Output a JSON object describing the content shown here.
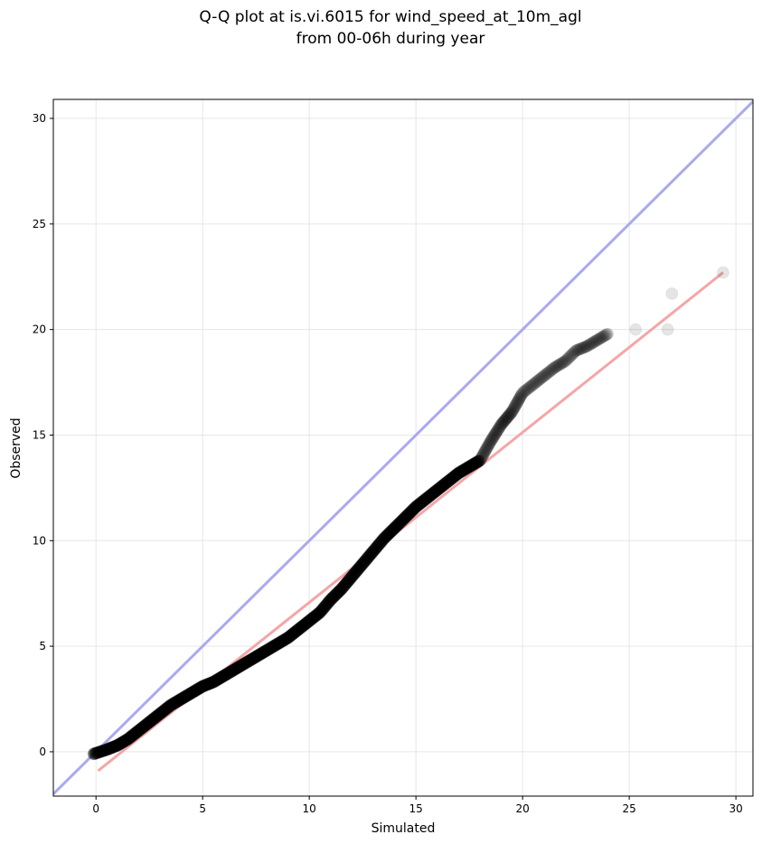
{
  "chart_data": {
    "type": "scatter",
    "title_line1": "Q-Q plot at is.vi.6015 for wind_speed_at_10m_agl",
    "title_line2": "from 00-06h during year",
    "xlabel": "Simulated",
    "ylabel": "Observed",
    "xlim": [
      -2.0,
      30.8
    ],
    "ylim": [
      -2.1,
      30.9
    ],
    "xticks": [
      0,
      5,
      10,
      15,
      20,
      25,
      30
    ],
    "yticks": [
      0,
      5,
      10,
      15,
      20,
      25,
      30
    ],
    "xtick_labels": [
      "0",
      "5",
      "10",
      "15",
      "20",
      "25",
      "30"
    ],
    "ytick_labels": [
      "0",
      "5",
      "10",
      "15",
      "20",
      "25",
      "30"
    ],
    "grid": true,
    "colors": {
      "identity_line": "#aaaaf0",
      "fit_line": "#f4a6a6",
      "points": "#000000",
      "background": "#ffffff",
      "grid": "#e6e6e6"
    },
    "identity_line": [
      [
        -2.0,
        -2.0
      ],
      [
        30.8,
        30.8
      ]
    ],
    "fit_line": [
      [
        0.1,
        -0.9
      ],
      [
        29.4,
        22.7
      ]
    ],
    "quantile_curve": [
      [
        -0.1,
        -0.1
      ],
      [
        0.5,
        0.1
      ],
      [
        1.0,
        0.3
      ],
      [
        1.5,
        0.6
      ],
      [
        2.0,
        1.0
      ],
      [
        2.5,
        1.4
      ],
      [
        3.0,
        1.8
      ],
      [
        3.5,
        2.2
      ],
      [
        4.0,
        2.5
      ],
      [
        4.5,
        2.8
      ],
      [
        5.0,
        3.1
      ],
      [
        5.5,
        3.3
      ],
      [
        6.0,
        3.6
      ],
      [
        6.5,
        3.9
      ],
      [
        7.0,
        4.2
      ],
      [
        7.5,
        4.5
      ],
      [
        8.0,
        4.8
      ],
      [
        8.5,
        5.1
      ],
      [
        9.0,
        5.4
      ],
      [
        9.5,
        5.8
      ],
      [
        10.0,
        6.2
      ],
      [
        10.5,
        6.6
      ],
      [
        11.0,
        7.2
      ],
      [
        11.5,
        7.7
      ],
      [
        12.0,
        8.3
      ],
      [
        12.5,
        8.9
      ],
      [
        13.0,
        9.5
      ],
      [
        13.5,
        10.1
      ],
      [
        14.0,
        10.6
      ],
      [
        14.5,
        11.1
      ],
      [
        15.0,
        11.6
      ],
      [
        15.5,
        12.0
      ],
      [
        16.0,
        12.4
      ],
      [
        16.5,
        12.8
      ],
      [
        17.0,
        13.2
      ],
      [
        17.5,
        13.5
      ],
      [
        18.0,
        13.8
      ],
      [
        18.5,
        14.7
      ],
      [
        19.0,
        15.5
      ],
      [
        19.5,
        16.1
      ],
      [
        20.0,
        17.0
      ],
      [
        20.5,
        17.4
      ],
      [
        21.0,
        17.8
      ],
      [
        21.5,
        18.2
      ],
      [
        22.0,
        18.5
      ],
      [
        22.5,
        19.0
      ],
      [
        23.0,
        19.2
      ],
      [
        23.5,
        19.5
      ],
      [
        24.0,
        19.8
      ]
    ],
    "outlier_points": [
      [
        25.3,
        20.0
      ],
      [
        26.8,
        20.0
      ],
      [
        27.0,
        21.7
      ],
      [
        29.4,
        22.7
      ]
    ]
  }
}
